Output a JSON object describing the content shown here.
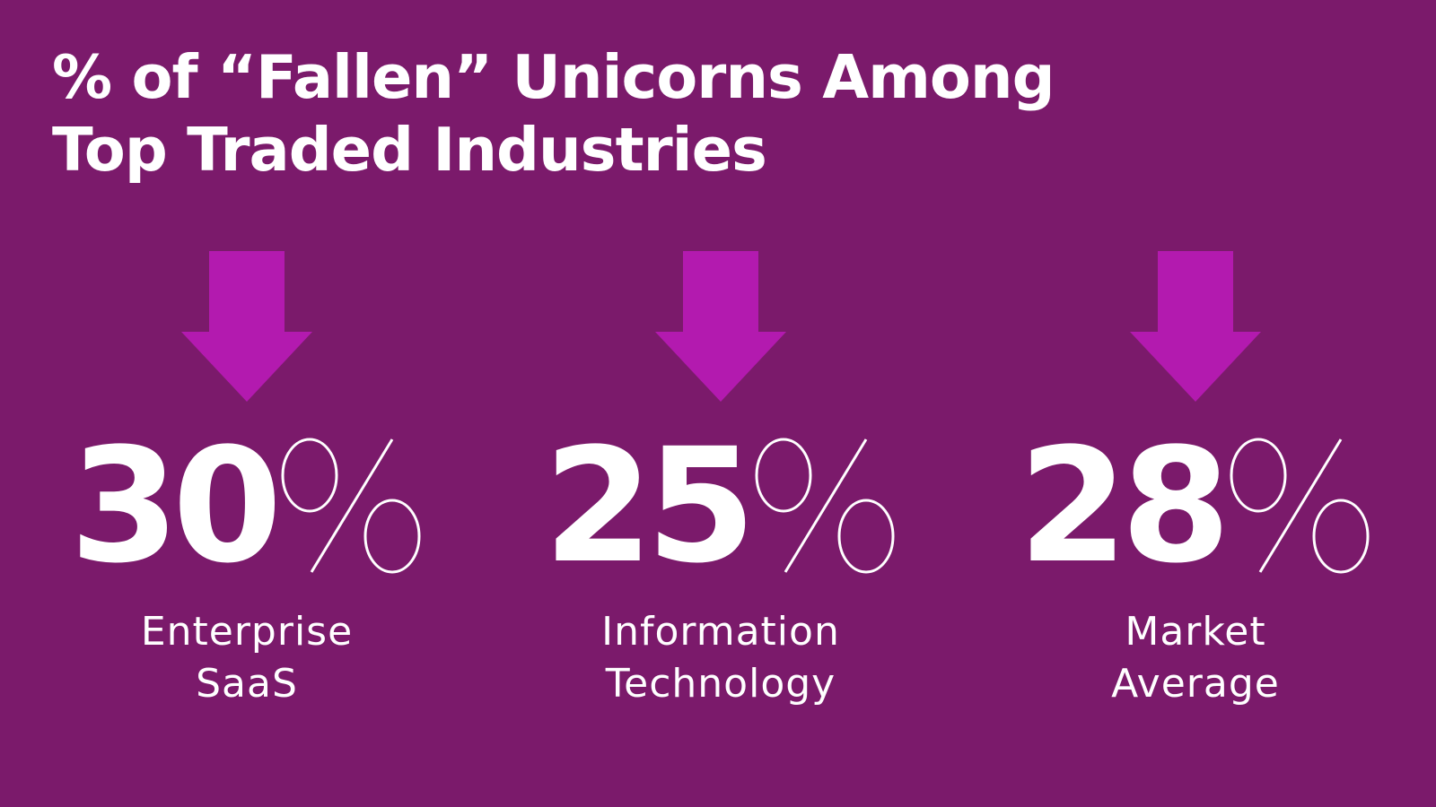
{
  "title": {
    "line1": "% of “Fallen” Unicorns Among",
    "line2": "Top Traded Industries"
  },
  "colors": {
    "background": "#7b1a6b",
    "arrow": "#b31aaf",
    "text": "#ffffff"
  },
  "chart_data": {
    "type": "bar",
    "title": "% of “Fallen” Unicorns Among Top Traded Industries",
    "unit": "%",
    "categories": [
      "Enterprise SaaS",
      "Information Technology",
      "Market Average"
    ],
    "values": [
      30,
      25,
      28
    ]
  },
  "stats": [
    {
      "value": "30",
      "label_line1": "Enterprise",
      "label_line2": "SaaS"
    },
    {
      "value": "25",
      "label_line1": "Information",
      "label_line2": "Technology"
    },
    {
      "value": "28",
      "label_line1": "Market",
      "label_line2": "Average"
    }
  ]
}
